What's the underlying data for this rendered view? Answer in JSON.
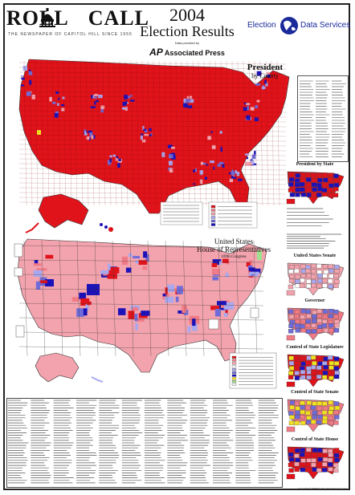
{
  "header": {
    "logo_left": "ROLL",
    "logo_right": "CALL",
    "logo_subtitle": "THE NEWSPAPER OF CAPITOL HILL SINCE 1955",
    "year": "2004",
    "title": "Election Results",
    "provided_by": "Data provided by",
    "ap_mark": "AP",
    "ap_name": "Associated Press",
    "eds_left": "Election",
    "eds_right": "Data Services"
  },
  "maps": {
    "president": {
      "title": "President",
      "subtitle": "by County"
    },
    "house": {
      "title_1": "United States",
      "title_2": "House of Representatives",
      "subtitle": "109th Congress"
    }
  },
  "side_maps": [
    {
      "title": "President by State"
    },
    {
      "title": "United States Senate"
    },
    {
      "title": "Governor"
    },
    {
      "title": "Control of State Legislature"
    },
    {
      "title": "Control of State Senate"
    },
    {
      "title": "Control of State House"
    }
  ],
  "colors": {
    "republican": "#e0131b",
    "democrat": "#1c12b8",
    "rep_light": "#f2a3ad",
    "dem_light": "#a9a8ee",
    "rep_mid": "#f07a86",
    "dem_mid": "#6f6cd9",
    "yellow": "#f0e020",
    "border": "#222222"
  },
  "copyright": "Copyright © 2005 Election Data Services, Inc."
}
